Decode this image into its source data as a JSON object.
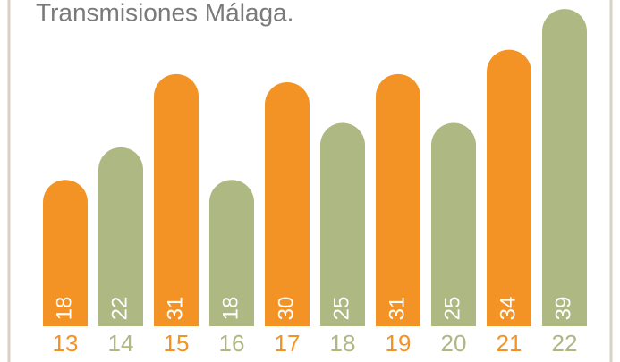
{
  "chart_data": {
    "type": "bar",
    "title": "Transmisiones Málaga.",
    "categories": [
      "13",
      "14",
      "15",
      "16",
      "17",
      "18",
      "19",
      "20",
      "21",
      "22"
    ],
    "values": [
      18,
      22,
      31,
      18,
      30,
      25,
      31,
      25,
      34,
      39
    ],
    "colors": [
      "#f39325",
      "#adb883",
      "#f39325",
      "#adb883",
      "#f39325",
      "#adb883",
      "#f39325",
      "#adb883",
      "#f39325",
      "#adb883"
    ]
  }
}
